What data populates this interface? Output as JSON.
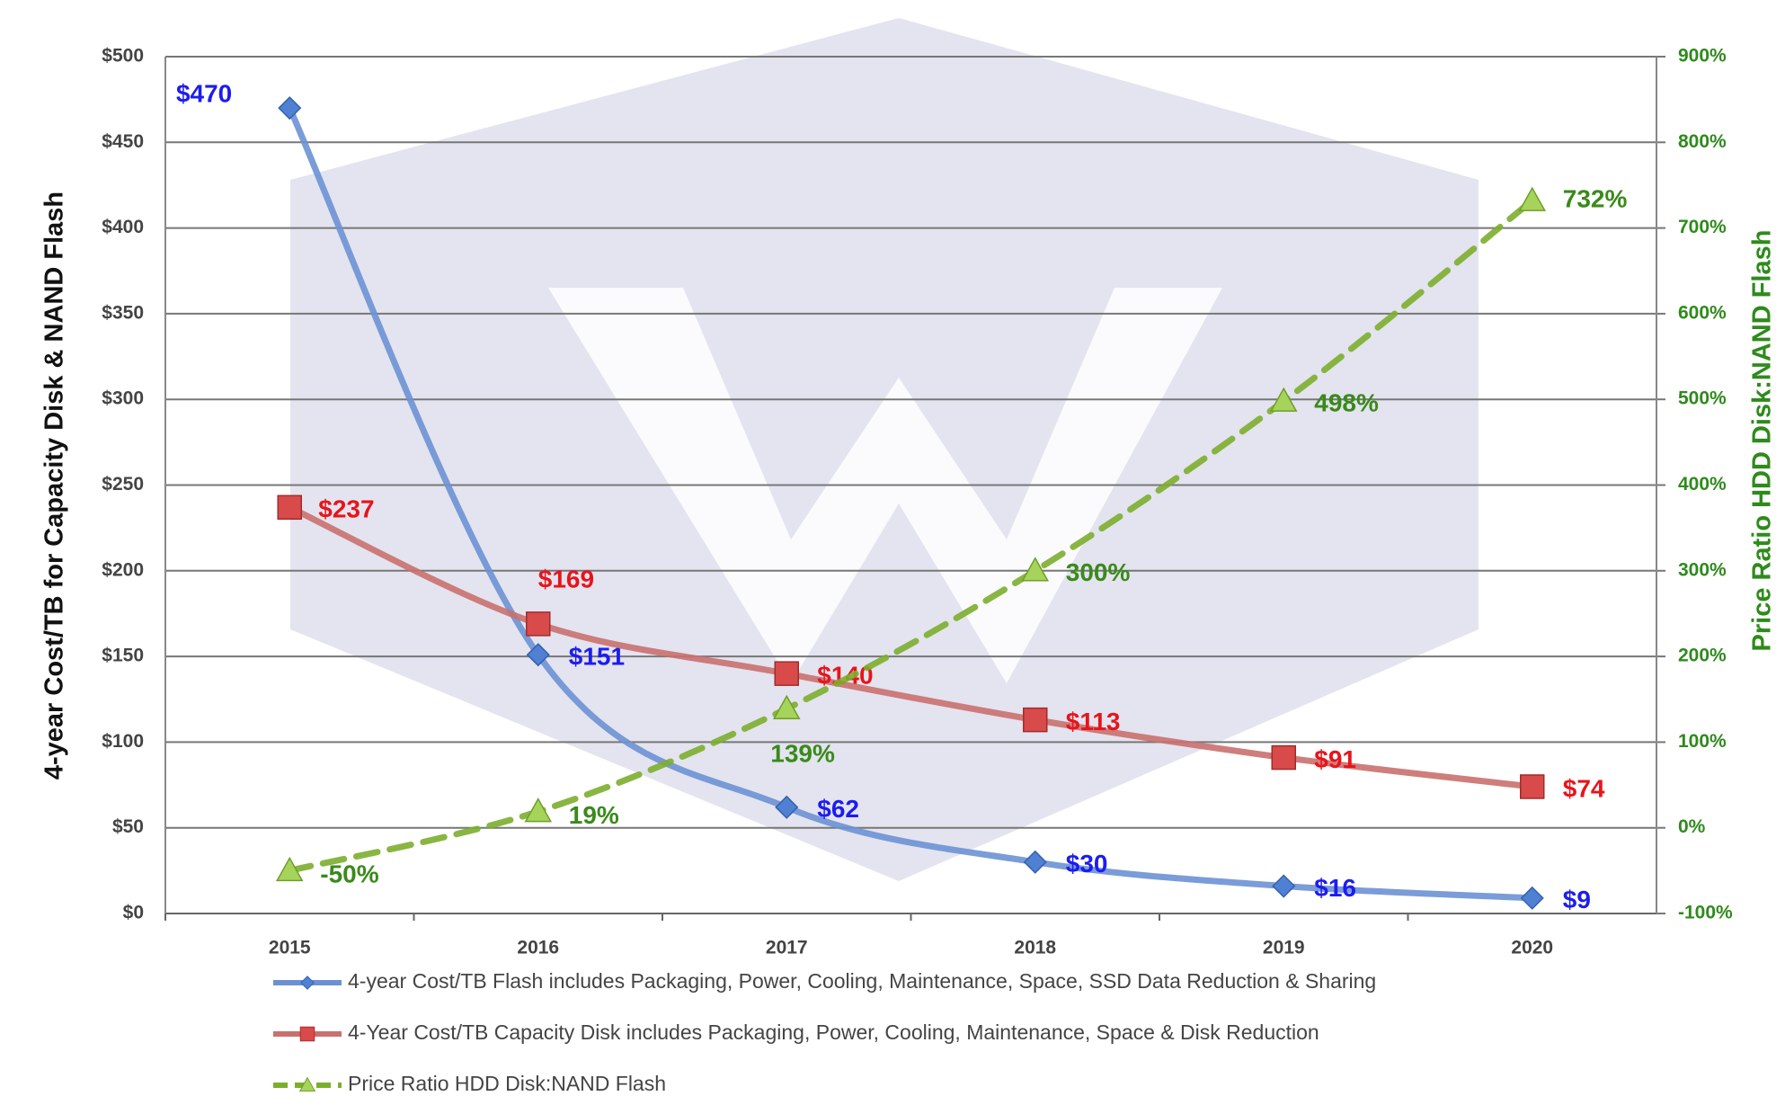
{
  "chart_data": {
    "type": "line",
    "y_label": "4-year Cost/TB for Capacity Disk & NAND Flash",
    "y2_label": "Price Ratio HDD Disk:NAND Flash",
    "categories": [
      "2015",
      "2016",
      "2017",
      "2018",
      "2019",
      "2020"
    ],
    "ylim": [
      0,
      500
    ],
    "yticks": [
      {
        "value": 0,
        "label": "$0"
      },
      {
        "value": 50,
        "label": "$50"
      },
      {
        "value": 100,
        "label": "$100"
      },
      {
        "value": 150,
        "label": "$150"
      },
      {
        "value": 200,
        "label": "$200"
      },
      {
        "value": 250,
        "label": "$250"
      },
      {
        "value": 300,
        "label": "$300"
      },
      {
        "value": 350,
        "label": "$350"
      },
      {
        "value": 400,
        "label": "$400"
      },
      {
        "value": 450,
        "label": "$450"
      },
      {
        "value": 500,
        "label": "$500"
      }
    ],
    "y2lim": [
      -100,
      900
    ],
    "y2ticks": [
      {
        "value": -100,
        "label": "-100%"
      },
      {
        "value": 0,
        "label": "0%"
      },
      {
        "value": 100,
        "label": "100%"
      },
      {
        "value": 200,
        "label": "200%"
      },
      {
        "value": 300,
        "label": "300%"
      },
      {
        "value": 400,
        "label": "400%"
      },
      {
        "value": 500,
        "label": "500%"
      },
      {
        "value": 600,
        "label": "600%"
      },
      {
        "value": 700,
        "label": "700%"
      },
      {
        "value": 800,
        "label": "800%"
      },
      {
        "value": 900,
        "label": "900%"
      }
    ],
    "grid": true,
    "series": [
      {
        "name": "4-year Cost/TB Flash includes Packaging, Power, Cooling, Maintenance, Space, SSD Data Reduction & Sharing",
        "color": "#6b91d4",
        "marker": "diamond",
        "label_color": "#1c1cf0",
        "line_style": "solid",
        "values": [
          470,
          151,
          62,
          30,
          16,
          9
        ],
        "value_labels": [
          "$470",
          "$151",
          "$62",
          "$30",
          "$16",
          "$9"
        ]
      },
      {
        "name": "4-Year Cost/TB Capacity Disk includes Packaging, Power, Cooling, Maintenance, Space & Disk Reduction",
        "color": "#c9706e",
        "marker": "square",
        "label_color": "#e8141a",
        "line_style": "solid",
        "values": [
          237,
          169,
          140,
          113,
          91,
          74
        ],
        "value_labels": [
          "$237",
          "$169",
          "$140",
          "$113",
          "$91",
          "$74"
        ]
      },
      {
        "name": "Price Ratio HDD Disk:NAND Flash",
        "color": "#7cae2e",
        "marker": "triangle",
        "label_color": "#3a8a1a",
        "line_style": "dashed",
        "axis": "y2",
        "values": [
          -50,
          19,
          139,
          300,
          498,
          732
        ],
        "value_labels": [
          "-50%",
          "19%",
          "139%",
          "300%",
          "498%",
          "732%"
        ]
      }
    ]
  }
}
